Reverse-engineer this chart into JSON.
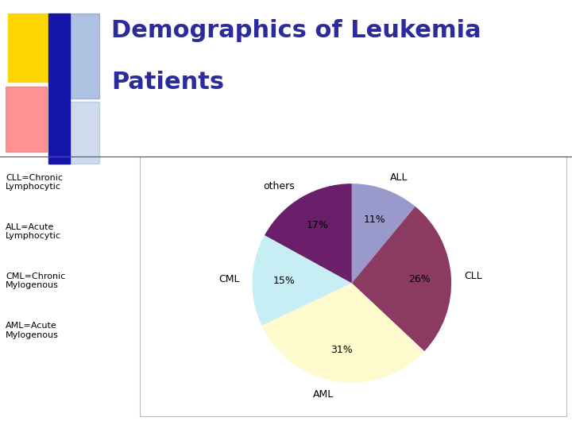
{
  "title_line1": "Demographics of Leukemia",
  "title_line2": "Patients",
  "title_color": "#2B2B9B",
  "title_fontsize": 22,
  "labels": [
    "ALL",
    "CLL",
    "AML",
    "CML",
    "others"
  ],
  "sizes": [
    11,
    26,
    31,
    15,
    17
  ],
  "colors": [
    "#9999CC",
    "#8B3A62",
    "#FFFACD",
    "#C8EEF5",
    "#6B1F6B"
  ],
  "label_fontsize": 9,
  "pct_fontsize": 9,
  "legend_texts": [
    "CLL=Chronic\nLymphocytic",
    "ALL=Acute\nLymphocytic",
    "CML=Chronic\nMylogenous",
    "AML=Acute\nMylogenous"
  ],
  "legend_fontsize": 8,
  "background_color": "#ffffff",
  "panel_background": "#ffffff",
  "startangle": 90,
  "deco_yellow": "#FFD700",
  "deco_red": "#FF6666",
  "deco_blue": "#1515AA",
  "deco_lightblue": "#7799CC"
}
